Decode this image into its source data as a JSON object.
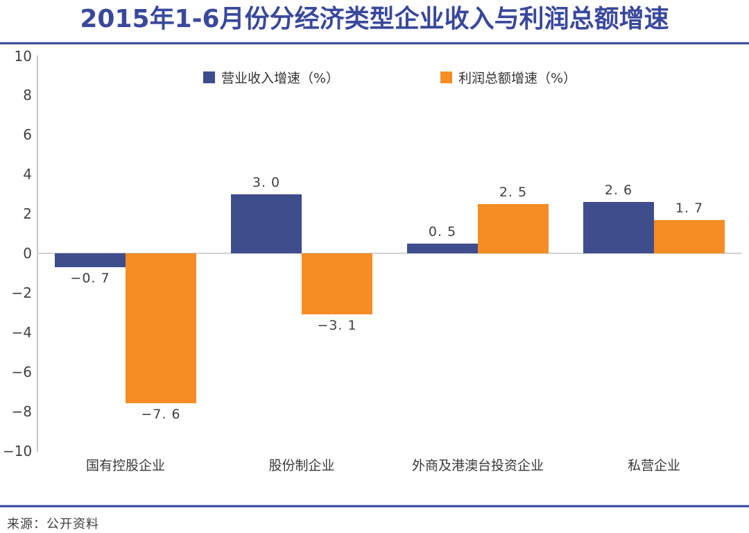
{
  "title": "2015年1-6月份分经济类型企业收入与利润总额增速",
  "source": "来源：公开资料",
  "colors": {
    "revenue_bar": "#3E4D8C",
    "profit_bar": "#F68C24",
    "title_text": "#3A489B",
    "divider_rule": "#434FA1",
    "axis_line": "#C6C6C6",
    "zero_line": "#D2D2D2",
    "value_text": "#404040"
  },
  "legend": [
    {
      "label": "营业收入增速（%）",
      "series": "revenue"
    },
    {
      "label": "利润总额增速（%）",
      "series": "profit"
    }
  ],
  "chart_data": {
    "type": "bar",
    "title": "2015年1-6月份分经济类型企业收入与利润总额增速",
    "categories": [
      "国有控股企业",
      "股份制企业",
      "外商及港澳台投资企业",
      "私营企业"
    ],
    "series": [
      {
        "name": "营业收入增速（%）",
        "color": "#3E4D8C",
        "values": [
          -0.7,
          3.0,
          0.5,
          2.6
        ],
        "labels": [
          "−0. 7",
          "3. 0",
          "0. 5",
          "2. 6"
        ]
      },
      {
        "name": "利润总额增速（%）",
        "color": "#F68C24",
        "values": [
          -7.6,
          -3.1,
          2.5,
          1.7
        ],
        "labels": [
          "−7. 6",
          "−3. 1",
          "2. 5",
          "1. 7"
        ]
      }
    ],
    "xlabel": "",
    "ylabel": "",
    "ylim": [
      -10,
      10
    ],
    "ytick_step": 2,
    "yticks": [
      10,
      8,
      6,
      4,
      2,
      0,
      -2,
      -4,
      -6,
      -8,
      -10
    ],
    "grid": false,
    "legend_position": "top-center"
  }
}
